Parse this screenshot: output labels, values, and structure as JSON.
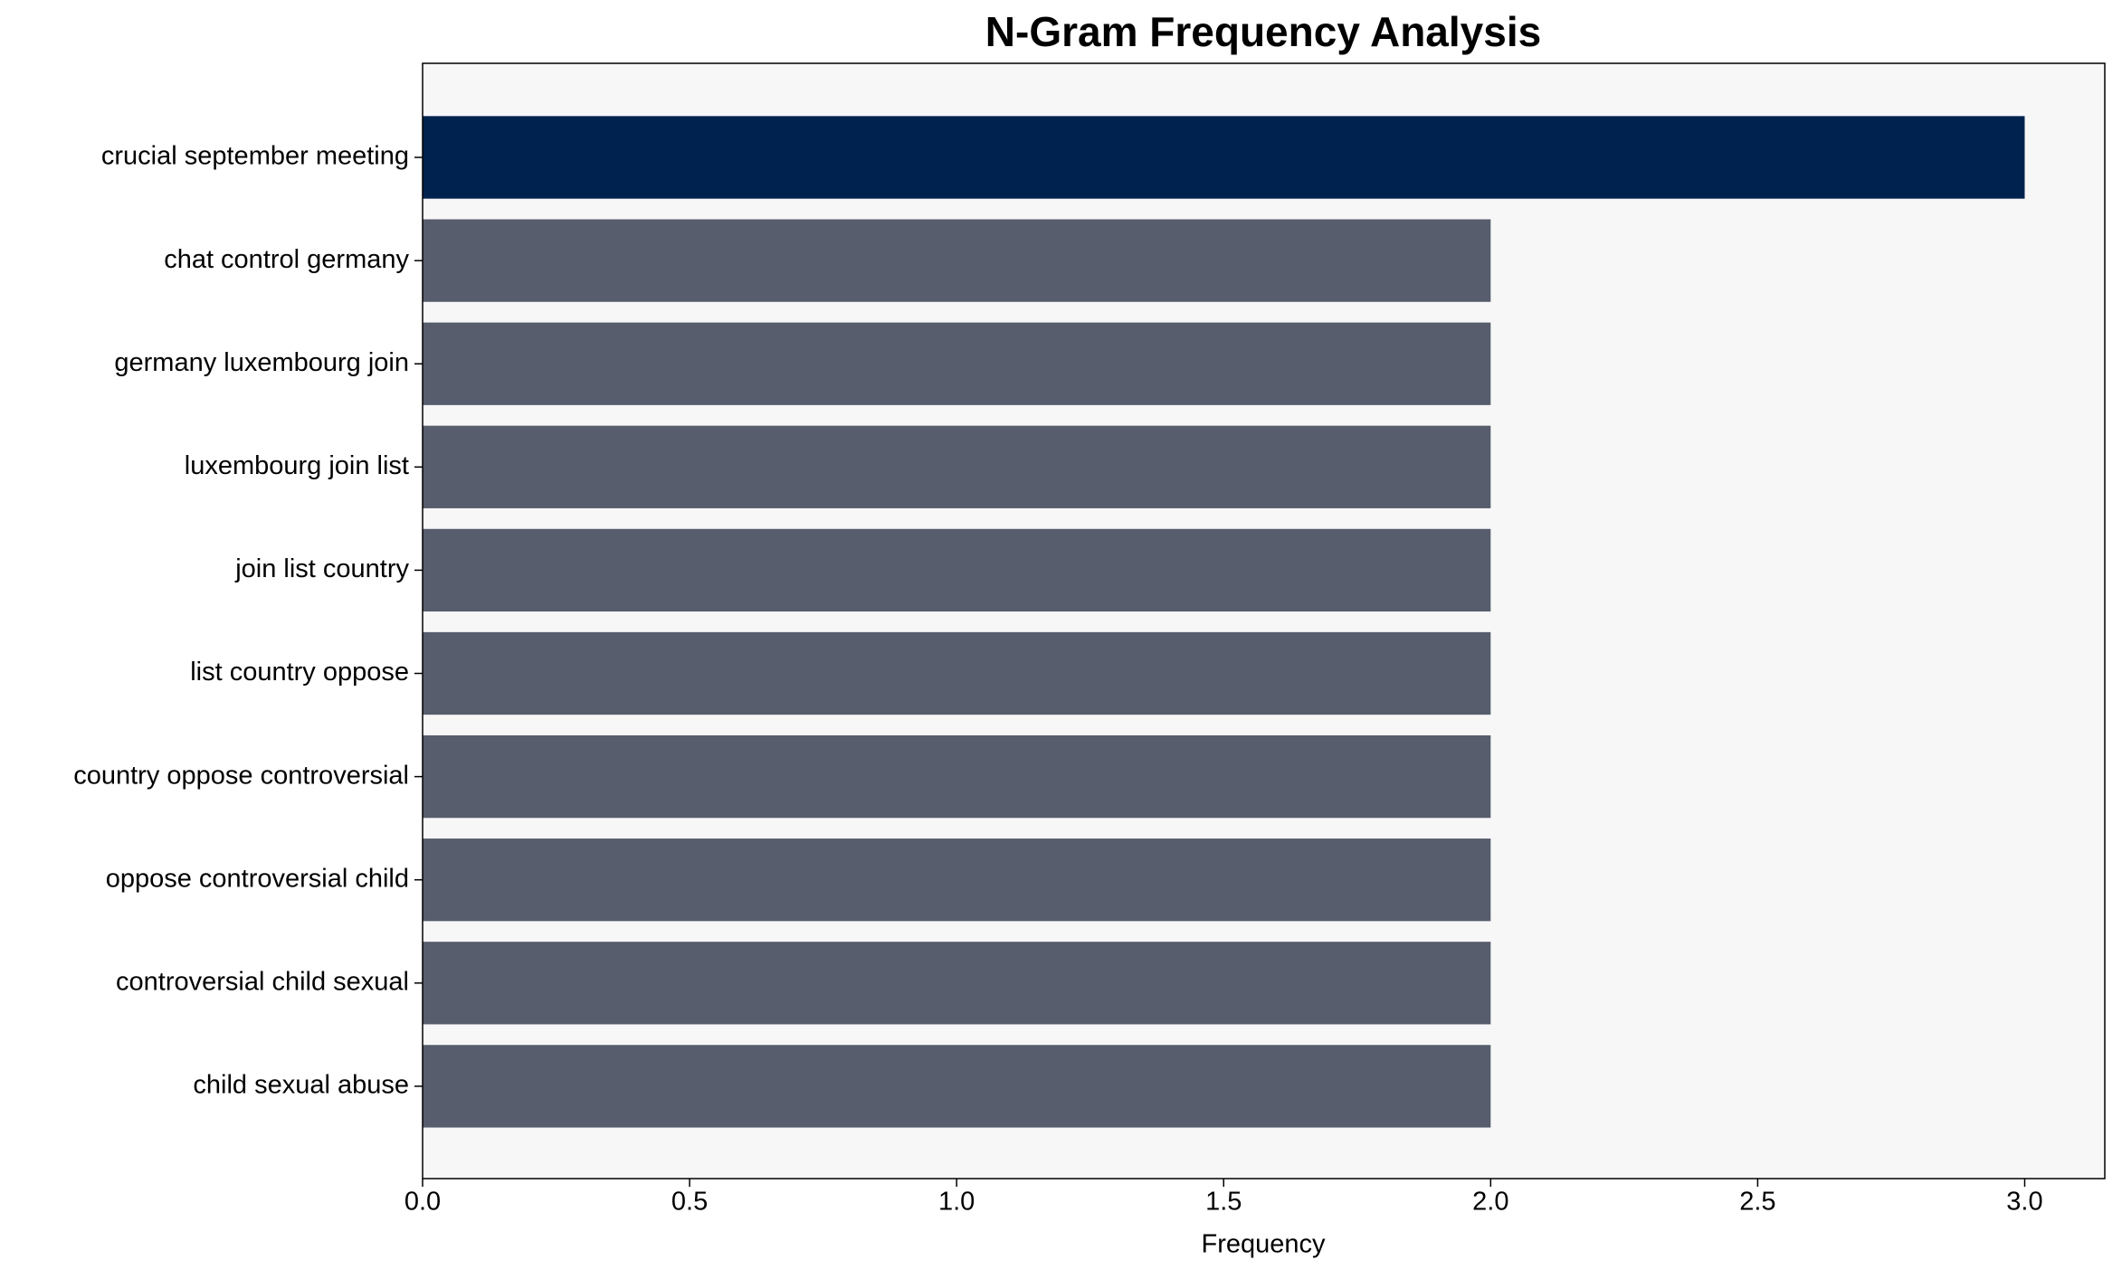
{
  "chart_data": {
    "type": "barh",
    "title": "N-Gram Frequency Analysis",
    "x_label": "Frequency",
    "categories": [
      "crucial september meeting",
      "chat control germany",
      "germany luxembourg join",
      "luxembourg join list",
      "join list country",
      "list country oppose",
      "country oppose controversial",
      "oppose controversial child",
      "controversial child sexual",
      "child sexual abuse"
    ],
    "values": [
      3,
      2,
      2,
      2,
      2,
      2,
      2,
      2,
      2,
      2
    ],
    "colors": [
      "#00224e",
      "#575d6d",
      "#575d6d",
      "#575d6d",
      "#575d6d",
      "#575d6d",
      "#575d6d",
      "#575d6d",
      "#575d6d",
      "#575d6d"
    ],
    "xlim": [
      0,
      3.15
    ],
    "xticks": [
      {
        "value": 0,
        "label": "0.0"
      },
      {
        "value": 0.5,
        "label": "0.5"
      },
      {
        "value": 1,
        "label": "1.0"
      },
      {
        "value": 1.5,
        "label": "1.5"
      },
      {
        "value": 2,
        "label": "2.0"
      },
      {
        "value": 2.5,
        "label": "2.5"
      },
      {
        "value": 3,
        "label": "3.0"
      }
    ],
    "background": "#f7f7f7"
  }
}
